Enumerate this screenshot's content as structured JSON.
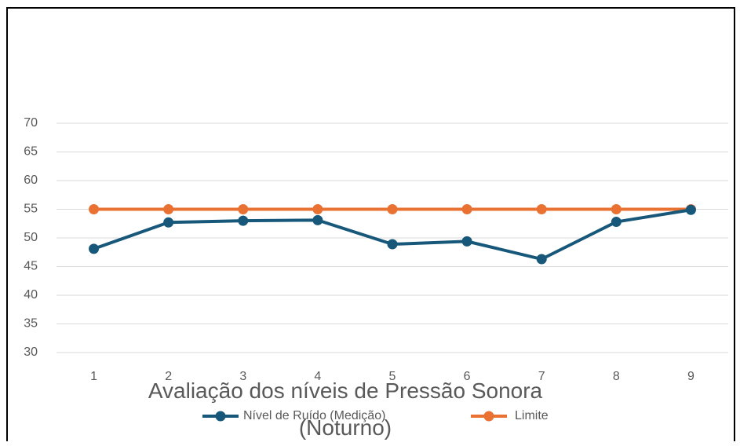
{
  "chart_data": {
    "type": "line",
    "title": "Avaliação dos níveis de Pressão Sonora (Noturno)",
    "categories": [
      "1",
      "2",
      "3",
      "4",
      "5",
      "6",
      "7",
      "8",
      "9"
    ],
    "series": [
      {
        "name": "Nível de Ruído (Medição)",
        "color": "#17587a",
        "values": [
          48.1,
          52.7,
          53.0,
          53.1,
          48.9,
          49.4,
          46.3,
          52.8,
          54.9
        ]
      },
      {
        "name": "Limite",
        "color": "#e97132",
        "values": [
          55,
          55,
          55,
          55,
          55,
          55,
          55,
          55,
          55
        ]
      }
    ],
    "ylim": [
      30,
      70
    ],
    "yticks": [
      30,
      35,
      40,
      45,
      50,
      55,
      60,
      65,
      70
    ],
    "grid": true,
    "legend": "bottom"
  }
}
